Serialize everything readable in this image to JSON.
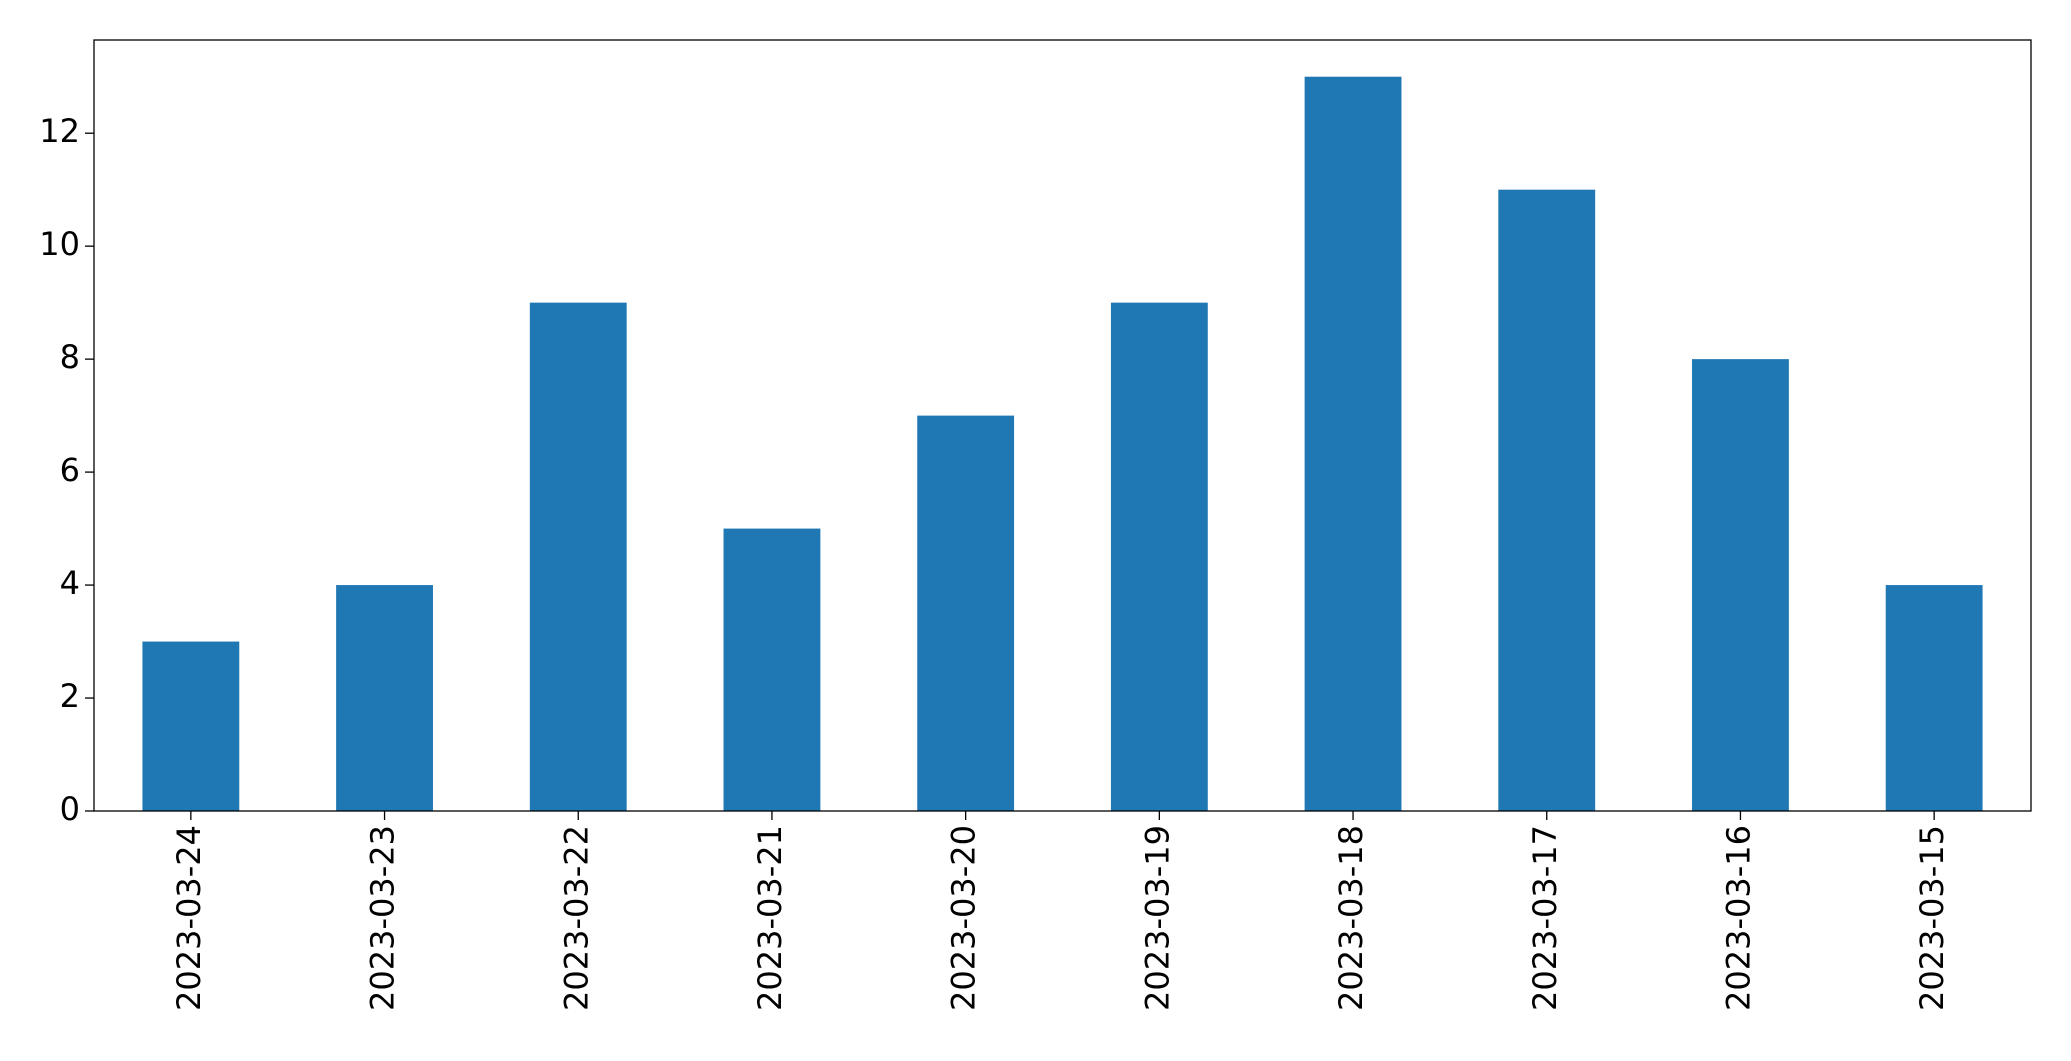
{
  "chart_data": {
    "type": "bar",
    "categories": [
      "2023-03-24",
      "2023-03-23",
      "2023-03-22",
      "2023-03-21",
      "2023-03-20",
      "2023-03-19",
      "2023-03-18",
      "2023-03-17",
      "2023-03-16",
      "2023-03-15"
    ],
    "values": [
      3,
      4,
      9,
      5,
      7,
      9,
      13,
      11,
      8,
      4
    ],
    "color": "#1f77b4",
    "ylim": [
      0,
      13.65
    ],
    "yticks": [
      0,
      2,
      4,
      6,
      8,
      10,
      12
    ],
    "grid": false
  }
}
